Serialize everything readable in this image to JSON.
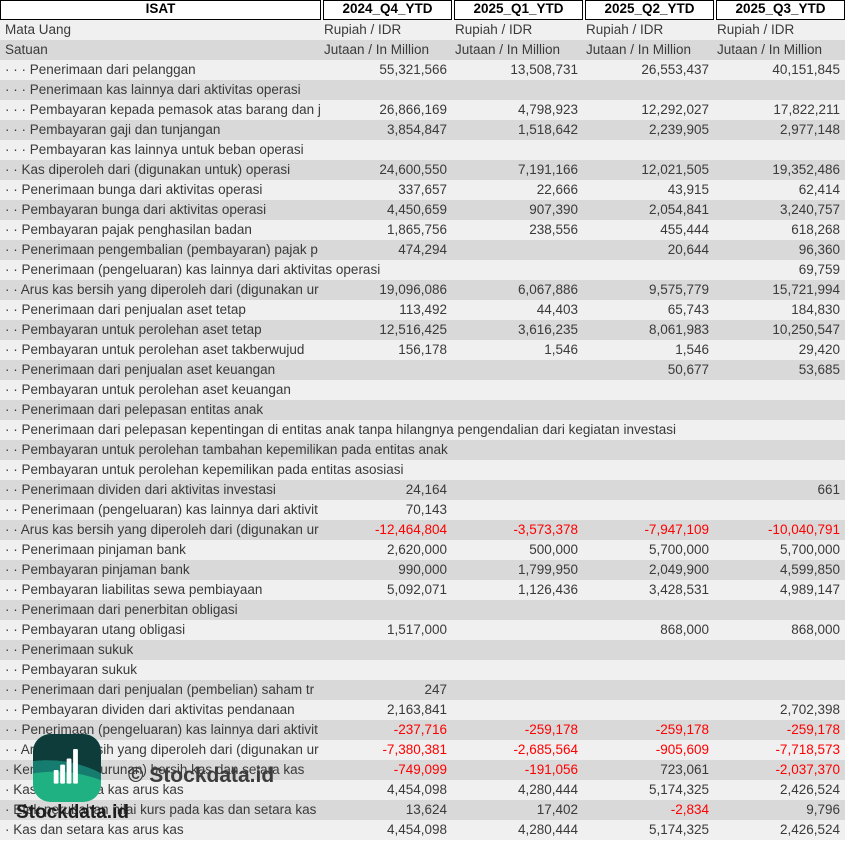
{
  "table": {
    "company": "ISAT",
    "period_columns": [
      "2024_Q4_YTD",
      "2025_Q1_YTD",
      "2025_Q2_YTD",
      "2025_Q3_YTD"
    ],
    "meta_rows": [
      {
        "label": "Mata Uang",
        "values": [
          "Rupiah / IDR",
          "Rupiah / IDR",
          "Rupiah / IDR",
          "Rupiah / IDR"
        ]
      },
      {
        "label": "Satuan",
        "values": [
          "Jutaan / In Million",
          "Jutaan / In Million",
          "Jutaan / In Million",
          "Jutaan / In Million"
        ]
      }
    ],
    "rows": [
      {
        "label": "· · · Penerimaan dari pelanggan",
        "values": [
          "55,321,566",
          "13,508,731",
          "26,553,437",
          "40,151,845"
        ]
      },
      {
        "label": "· · · Penerimaan kas lainnya dari aktivitas operasi",
        "values": [
          "",
          "",
          "",
          ""
        ]
      },
      {
        "label": "· · · Pembayaran kepada pemasok atas barang dan ja",
        "values": [
          "26,866,169",
          "4,798,923",
          "12,292,027",
          "17,822,211"
        ]
      },
      {
        "label": "· · · Pembayaran gaji dan tunjangan",
        "values": [
          "3,854,847",
          "1,518,642",
          "2,239,905",
          "2,977,148"
        ]
      },
      {
        "label": "· · · Pembayaran kas lainnya untuk beban operasi",
        "values": [
          "",
          "",
          "",
          ""
        ]
      },
      {
        "label": "· · Kas diperoleh dari (digunakan untuk) operasi",
        "values": [
          "24,600,550",
          "7,191,166",
          "12,021,505",
          "19,352,486"
        ]
      },
      {
        "label": "· · Penerimaan bunga dari aktivitas operasi",
        "values": [
          "337,657",
          "22,666",
          "43,915",
          "62,414"
        ]
      },
      {
        "label": "· · Pembayaran bunga dari aktivitas operasi",
        "values": [
          "4,450,659",
          "907,390",
          "2,054,841",
          "3,240,757"
        ]
      },
      {
        "label": "· · Pembayaran pajak penghasilan badan",
        "values": [
          "1,865,756",
          "238,556",
          "455,444",
          "618,268"
        ]
      },
      {
        "label": "· · Penerimaan pengembalian (pembayaran) pajak p",
        "values": [
          "474,294",
          "",
          "20,644",
          "96,360"
        ]
      },
      {
        "label": "· · Penerimaan (pengeluaran) kas lainnya dari aktivitas operasi",
        "values": [
          "",
          "",
          "",
          "69,759"
        ]
      },
      {
        "label": "· · Arus kas bersih yang diperoleh dari (digunakan ur",
        "values": [
          "19,096,086",
          "6,067,886",
          "9,575,779",
          "15,721,994"
        ]
      },
      {
        "label": "· · Penerimaan dari penjualan aset tetap",
        "values": [
          "113,492",
          "44,403",
          "65,743",
          "184,830"
        ]
      },
      {
        "label": "· · Pembayaran untuk perolehan aset tetap",
        "values": [
          "12,516,425",
          "3,616,235",
          "8,061,983",
          "10,250,547"
        ]
      },
      {
        "label": "· · Pembayaran untuk perolehan aset takberwujud",
        "values": [
          "156,178",
          "1,546",
          "1,546",
          "29,420"
        ]
      },
      {
        "label": "· · Penerimaan dari penjualan aset keuangan",
        "values": [
          "",
          "",
          "50,677",
          "53,685"
        ]
      },
      {
        "label": "· · Pembayaran untuk perolehan aset keuangan",
        "values": [
          "",
          "",
          "",
          ""
        ]
      },
      {
        "label": "· · Penerimaan dari pelepasan entitas anak",
        "values": [
          "",
          "",
          "",
          ""
        ]
      },
      {
        "label": "· · Penerimaan dari pelepasan kepentingan di entitas anak tanpa hilangnya pengendalian dari kegiatan investasi",
        "values": [
          "",
          "",
          "",
          ""
        ]
      },
      {
        "label": "· · Pembayaran untuk perolehan tambahan kepemilikan pada entitas anak",
        "values": [
          "",
          "",
          "",
          ""
        ]
      },
      {
        "label": "· · Pembayaran untuk perolehan kepemilikan pada entitas asosiasi",
        "values": [
          "",
          "",
          "",
          ""
        ]
      },
      {
        "label": "· · Penerimaan dividen dari aktivitas investasi",
        "values": [
          "24,164",
          "",
          "",
          "661"
        ]
      },
      {
        "label": "· · Penerimaan (pengeluaran) kas lainnya dari aktivit",
        "values": [
          "70,143",
          "",
          "",
          ""
        ]
      },
      {
        "label": "· · Arus kas bersih yang diperoleh dari (digunakan ur",
        "values": [
          "-12,464,804",
          "-3,573,378",
          "-7,947,109",
          "-10,040,791"
        ]
      },
      {
        "label": "· · Penerimaan pinjaman bank",
        "values": [
          "2,620,000",
          "500,000",
          "5,700,000",
          "5,700,000"
        ]
      },
      {
        "label": "· · Pembayaran pinjaman bank",
        "values": [
          "990,000",
          "1,799,950",
          "2,049,900",
          "4,599,850"
        ]
      },
      {
        "label": "· · Pembayaran liabilitas sewa pembiayaan",
        "values": [
          "5,092,071",
          "1,126,436",
          "3,428,531",
          "4,989,147"
        ]
      },
      {
        "label": "· · Penerimaan dari penerbitan obligasi",
        "values": [
          "",
          "",
          "",
          ""
        ]
      },
      {
        "label": "· · Pembayaran utang obligasi",
        "values": [
          "1,517,000",
          "",
          "868,000",
          "868,000"
        ]
      },
      {
        "label": "· · Penerimaan sukuk",
        "values": [
          "",
          "",
          "",
          ""
        ]
      },
      {
        "label": "· · Pembayaran sukuk",
        "values": [
          "",
          "",
          "",
          ""
        ]
      },
      {
        "label": "· · Penerimaan dari penjualan (pembelian) saham tr",
        "values": [
          "247",
          "",
          "",
          ""
        ]
      },
      {
        "label": "· · Pembayaran dividen dari aktivitas pendanaan",
        "values": [
          "2,163,841",
          "",
          "",
          "2,702,398"
        ]
      },
      {
        "label": "· · Penerimaan (pengeluaran) kas lainnya dari aktivit",
        "values": [
          "-237,716",
          "-259,178",
          "-259,178",
          "-259,178"
        ]
      },
      {
        "label": "· · Arus kas bersih yang diperoleh dari (digunakan ur",
        "values": [
          "-7,380,381",
          "-2,685,564",
          "-905,609",
          "-7,718,573"
        ]
      },
      {
        "label": "· Kenaikan (penurunan) bersih kas dan setara kas",
        "values": [
          "-749,099",
          "-191,056",
          "723,061",
          "-2,037,370"
        ]
      },
      {
        "label": "· Kas dan setara kas arus kas",
        "values": [
          "4,454,098",
          "4,280,444",
          "5,174,325",
          "2,426,524"
        ]
      },
      {
        "label": "· Efek perubahan nilai kurs pada kas dan setara kas",
        "values": [
          "13,624",
          "17,402",
          "-2,834",
          "9,796"
        ]
      },
      {
        "label": "· Kas dan setara kas arus kas",
        "values": [
          "4,454,098",
          "4,280,444",
          "5,174,325",
          "2,426,524"
        ]
      }
    ]
  },
  "watermark": {
    "copyright": "© Stockdata.id",
    "brand": "Stockdata.id",
    "icon": "bar-chart-logo"
  },
  "colors": {
    "negative_value": "#ff0000",
    "row_light": "#f0f0f0",
    "row_shaded": "#d9d9d9",
    "header_border": "#000000",
    "logo_dark_teal": "#0d3c3b",
    "logo_mid_teal": "#157c6f",
    "logo_green": "#1fb181"
  }
}
